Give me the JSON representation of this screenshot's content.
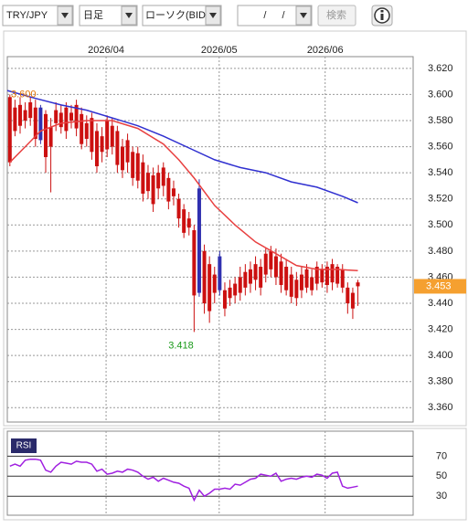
{
  "toolbar": {
    "pair": "TRY/JPY",
    "period": "日足",
    "chart_type": "ローソク(BID)",
    "date": "/ /",
    "search": "検索"
  },
  "chart_data": [
    {
      "type": "candlestick",
      "xlim": [
        -0.5,
        78.8
      ],
      "xticks": [
        {
          "value": 18.8,
          "label": "2026/04"
        },
        {
          "value": 40.9,
          "label": "2026/05"
        },
        {
          "value": 61.6,
          "label": "2026/06"
        }
      ],
      "ylim": [
        3.349,
        3.629
      ],
      "yticks": [
        {
          "value": 3.62,
          "label": "3.620"
        },
        {
          "value": 3.6,
          "label": "3.600"
        },
        {
          "value": 3.58,
          "label": "3.580"
        },
        {
          "value": 3.56,
          "label": "3.560"
        },
        {
          "value": 3.54,
          "label": "3.540"
        },
        {
          "value": 3.52,
          "label": "3.520"
        },
        {
          "value": 3.5,
          "label": "3.500"
        },
        {
          "value": 3.48,
          "label": "3.480"
        },
        {
          "value": 3.46,
          "label": "3.460"
        },
        {
          "value": 3.44,
          "label": "3.440"
        },
        {
          "value": 3.42,
          "label": "3.420"
        },
        {
          "value": 3.4,
          "label": "3.400"
        },
        {
          "value": 3.38,
          "label": "3.380"
        },
        {
          "value": 3.36,
          "label": "3.360"
        }
      ],
      "grid": true,
      "up_color": "#3030b0",
      "down_color": "#cc1010",
      "open": [
        3.598,
        3.59,
        3.592,
        3.588,
        3.594,
        3.59,
        3.565,
        3.585,
        3.575,
        3.588,
        3.586,
        3.59,
        3.586,
        3.592,
        3.585,
        3.578,
        3.582,
        3.572,
        3.568,
        3.58,
        3.576,
        3.572,
        3.56,
        3.565,
        3.556,
        3.555,
        3.548,
        3.54,
        3.538,
        3.54,
        3.544,
        3.536,
        3.528,
        3.52,
        3.512,
        3.505,
        3.496,
        3.448,
        3.48,
        3.47,
        3.462,
        3.45,
        3.45,
        3.452,
        3.455,
        3.46,
        3.464,
        3.466,
        3.47,
        3.468,
        3.478,
        3.48,
        3.476,
        3.472,
        3.468,
        3.462,
        3.458,
        3.462,
        3.466,
        3.46,
        3.468,
        3.466,
        3.468,
        3.47,
        3.468,
        3.466,
        3.452,
        3.448,
        3.456
      ],
      "high": [
        3.6,
        3.596,
        3.598,
        3.594,
        3.598,
        3.596,
        3.592,
        3.588,
        3.582,
        3.594,
        3.592,
        3.594,
        3.592,
        3.596,
        3.59,
        3.584,
        3.586,
        3.578,
        3.575,
        3.584,
        3.582,
        3.576,
        3.566,
        3.57,
        3.56,
        3.56,
        3.554,
        3.546,
        3.544,
        3.546,
        3.548,
        3.54,
        3.534,
        3.524,
        3.516,
        3.51,
        3.5,
        3.535,
        3.485,
        3.476,
        3.468,
        3.48,
        3.456,
        3.458,
        3.46,
        3.468,
        3.47,
        3.472,
        3.476,
        3.474,
        3.482,
        3.484,
        3.482,
        3.478,
        3.474,
        3.468,
        3.464,
        3.468,
        3.47,
        3.466,
        3.472,
        3.47,
        3.472,
        3.474,
        3.47,
        3.47,
        3.456,
        3.452,
        3.458
      ],
      "low": [
        3.545,
        3.568,
        3.57,
        3.574,
        3.576,
        3.56,
        3.562,
        3.54,
        3.525,
        3.572,
        3.57,
        3.566,
        3.574,
        3.568,
        3.558,
        3.56,
        3.55,
        3.54,
        3.548,
        3.552,
        3.554,
        3.54,
        3.536,
        3.54,
        3.53,
        3.528,
        3.518,
        3.52,
        3.51,
        3.52,
        3.522,
        3.512,
        3.515,
        3.498,
        3.49,
        3.492,
        3.418,
        3.445,
        3.432,
        3.425,
        3.44,
        3.446,
        3.43,
        3.438,
        3.44,
        3.442,
        3.446,
        3.448,
        3.45,
        3.446,
        3.456,
        3.46,
        3.454,
        3.448,
        3.446,
        3.44,
        3.438,
        3.444,
        3.448,
        3.446,
        3.45,
        3.452,
        3.448,
        3.45,
        3.452,
        3.448,
        3.432,
        3.428,
        3.438
      ],
      "close": [
        3.548,
        3.572,
        3.576,
        3.58,
        3.582,
        3.566,
        3.59,
        3.552,
        3.56,
        3.578,
        3.575,
        3.572,
        3.58,
        3.574,
        3.562,
        3.566,
        3.556,
        3.545,
        3.556,
        3.558,
        3.56,
        3.546,
        3.542,
        3.548,
        3.536,
        3.534,
        3.524,
        3.526,
        3.516,
        3.528,
        3.53,
        3.518,
        3.522,
        3.505,
        3.494,
        3.498,
        3.446,
        3.528,
        3.44,
        3.434,
        3.448,
        3.476,
        3.436,
        3.444,
        3.446,
        3.448,
        3.452,
        3.455,
        3.458,
        3.452,
        3.462,
        3.466,
        3.46,
        3.454,
        3.45,
        3.445,
        3.444,
        3.45,
        3.452,
        3.45,
        3.455,
        3.456,
        3.454,
        3.456,
        3.455,
        3.452,
        3.44,
        3.436,
        3.453
      ],
      "series": [
        {
          "color": "#3030d0",
          "x": [
            -0.5,
            5,
            10,
            15,
            20,
            25,
            30,
            35,
            40,
            45,
            50,
            55,
            60,
            65,
            68
          ],
          "values": [
            3.603,
            3.597,
            3.592,
            3.588,
            3.582,
            3.576,
            3.568,
            3.559,
            3.55,
            3.544,
            3.54,
            3.533,
            3.529,
            3.522,
            3.517
          ]
        },
        {
          "color": "#e84040",
          "x": [
            0,
            3,
            6,
            10,
            15,
            20,
            25,
            30,
            33,
            36,
            40,
            44,
            48,
            52,
            56,
            60,
            64,
            68
          ],
          "values": [
            3.548,
            3.56,
            3.572,
            3.578,
            3.58,
            3.58,
            3.574,
            3.562,
            3.55,
            3.536,
            3.515,
            3.5,
            3.487,
            3.478,
            3.469,
            3.466,
            3.466,
            3.465
          ]
        }
      ],
      "high_marker": {
        "value": 3.6,
        "label": "3.600"
      },
      "low_marker": 3.418,
      "last_price": 3.453
    },
    {
      "type": "line",
      "title": "RSI",
      "xlim": [
        -0.5,
        78.8
      ],
      "ylim": [
        11,
        95
      ],
      "yticks": [
        70,
        50,
        30
      ],
      "color": "#a020e0",
      "values": [
        60,
        62,
        60,
        66,
        67,
        67,
        66,
        56,
        54,
        60,
        64,
        63,
        62,
        65,
        64,
        64,
        62,
        55,
        57,
        52,
        53,
        55,
        54,
        57,
        56,
        54,
        50,
        47,
        49,
        45,
        48,
        46,
        44,
        43,
        40,
        38,
        26,
        36,
        30,
        33,
        37,
        37,
        38,
        37,
        42,
        41,
        44,
        47,
        48,
        52,
        51,
        50,
        53,
        45,
        47,
        48,
        47,
        49,
        50,
        49,
        52,
        51,
        48,
        53,
        54,
        40,
        38,
        39,
        40
      ]
    }
  ]
}
